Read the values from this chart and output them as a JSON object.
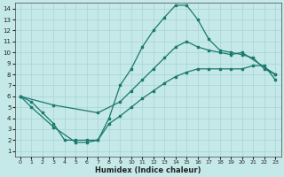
{
  "xlabel": "Humidex (Indice chaleur)",
  "xlim": [
    -0.5,
    23.5
  ],
  "ylim": [
    0.5,
    14.5
  ],
  "xticks": [
    0,
    1,
    2,
    3,
    4,
    5,
    6,
    7,
    8,
    9,
    10,
    11,
    12,
    13,
    14,
    15,
    16,
    17,
    18,
    19,
    20,
    21,
    22,
    23
  ],
  "yticks": [
    1,
    2,
    3,
    4,
    5,
    6,
    7,
    8,
    9,
    10,
    11,
    12,
    13,
    14
  ],
  "bg_color": "#c5e8e8",
  "grid_color": "#a8d4d4",
  "line_color": "#1a7a6e",
  "curve1_x": [
    0,
    1,
    2,
    3,
    4,
    5,
    6,
    7,
    8,
    9,
    10,
    11,
    12,
    13,
    14,
    15,
    16,
    17,
    18,
    19,
    20,
    21,
    22,
    23
  ],
  "curve1_y": [
    6.0,
    5.5,
    4.5,
    3.5,
    2.0,
    2.0,
    2.0,
    2.0,
    4.0,
    7.0,
    8.5,
    10.5,
    12.0,
    13.2,
    14.3,
    14.3,
    13.0,
    11.2,
    10.2,
    10.0,
    9.8,
    9.5,
    8.5,
    8.0
  ],
  "curve2_x": [
    0,
    3,
    7,
    9,
    10,
    11,
    12,
    13,
    14,
    15,
    16,
    17,
    18,
    19,
    20,
    23
  ],
  "curve2_y": [
    6.0,
    5.2,
    4.5,
    5.5,
    6.5,
    7.5,
    8.5,
    9.5,
    10.5,
    11.0,
    10.5,
    10.2,
    10.0,
    9.8,
    10.0,
    8.0
  ],
  "curve3_x": [
    0,
    1,
    3,
    5,
    6,
    7,
    8,
    9,
    10,
    11,
    12,
    13,
    14,
    15,
    16,
    17,
    18,
    19,
    20,
    21,
    22,
    23
  ],
  "curve3_y": [
    6.0,
    5.0,
    3.2,
    1.8,
    1.8,
    2.0,
    3.5,
    4.2,
    5.0,
    5.8,
    6.5,
    7.2,
    7.8,
    8.2,
    8.5,
    8.5,
    8.5,
    8.5,
    8.5,
    8.8,
    8.8,
    7.5
  ]
}
